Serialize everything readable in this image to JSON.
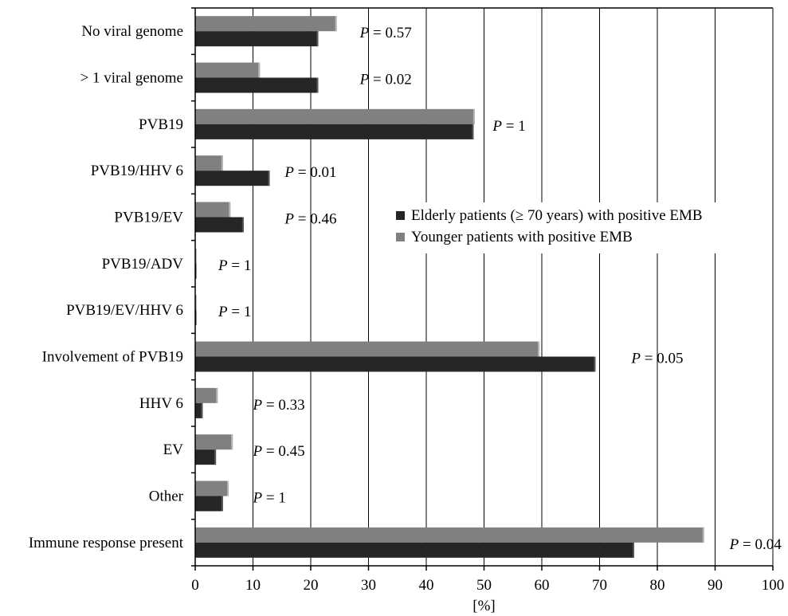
{
  "chart_data": {
    "type": "bar",
    "orientation": "horizontal",
    "categories": [
      "No viral genome",
      "> 1 viral genome",
      "PVB19",
      "PVB19/HHV 6",
      "PVB19/EV",
      "PVB19/ADV",
      "PVB19/EV/HHV 6",
      "Involvement of PVB19",
      "HHV 6",
      "EV",
      "Other",
      "Immune response present"
    ],
    "series": [
      {
        "name": "Younger patients with positive EMB",
        "color": "#808080",
        "values": [
          24.5,
          11.2,
          48.4,
          4.8,
          6.1,
          0.2,
          0.2,
          59.6,
          3.9,
          6.5,
          5.8,
          88.1
        ]
      },
      {
        "name": "Elderly patients (≥ 70 years) with positive EMB",
        "color": "#262626",
        "values": [
          21.3,
          21.3,
          48.2,
          12.9,
          8.4,
          0.2,
          0.2,
          69.3,
          1.3,
          3.6,
          4.8,
          76.0
        ]
      }
    ],
    "p_values": [
      "P = 0.57",
      "P = 0.02",
      "P = 1",
      "P = 0.01",
      "P = 0.46",
      "P = 1",
      "P = 1",
      "P = 0.05",
      "P = 0.33",
      "P = 0.45",
      "P = 1",
      "P = 0.04"
    ],
    "p_positions": [
      28.5,
      28.5,
      51.5,
      15.5,
      15.5,
      4.0,
      4.0,
      75.5,
      10.0,
      10.0,
      10.0,
      92.5
    ],
    "xlim": [
      0,
      100
    ],
    "xticks": [
      0,
      10,
      20,
      30,
      40,
      50,
      60,
      70,
      80,
      90,
      100
    ],
    "xlabel": "[%]",
    "ylabel": "",
    "title": "",
    "grid": "vertical",
    "legend_position": "right-middle"
  }
}
